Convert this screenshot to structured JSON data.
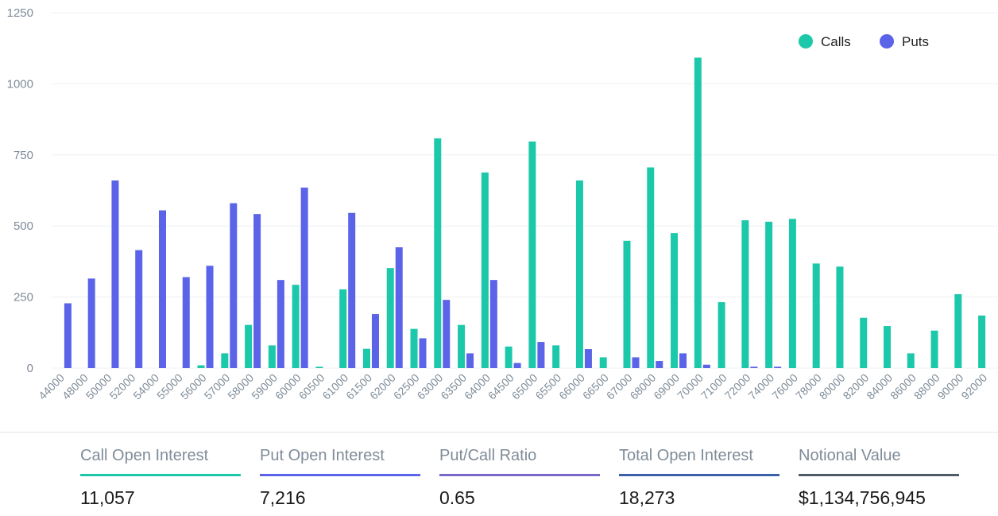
{
  "chart_data": {
    "type": "bar",
    "title": "",
    "xlabel": "",
    "ylabel": "",
    "ylim": [
      0,
      1250
    ],
    "yticks": [
      0,
      250,
      500,
      750,
      1000,
      1250
    ],
    "legend_position": "top-right",
    "categories": [
      "44000",
      "48000",
      "50000",
      "52000",
      "54000",
      "55000",
      "56000",
      "57000",
      "58000",
      "59000",
      "60000",
      "60500",
      "61000",
      "61500",
      "62000",
      "62500",
      "63000",
      "63500",
      "64000",
      "64500",
      "65000",
      "65500",
      "66000",
      "66500",
      "67000",
      "68000",
      "69000",
      "70000",
      "71000",
      "72000",
      "74000",
      "76000",
      "78000",
      "80000",
      "82000",
      "84000",
      "86000",
      "88000",
      "90000",
      "92000"
    ],
    "series": [
      {
        "name": "Calls",
        "color": "#1cc8aa",
        "values": [
          0,
          0,
          0,
          0,
          0,
          0,
          10,
          52,
          152,
          80,
          293,
          5,
          277,
          68,
          352,
          138,
          808,
          152,
          688,
          76,
          797,
          80,
          660,
          38,
          448,
          706,
          475,
          1092,
          232,
          520,
          515,
          525,
          368,
          357,
          177,
          148,
          52,
          132,
          260,
          185
        ]
      },
      {
        "name": "Puts",
        "color": "#5b63e8",
        "values": [
          228,
          315,
          660,
          415,
          555,
          320,
          360,
          580,
          542,
          310,
          635,
          0,
          546,
          190,
          425,
          105,
          240,
          52,
          310,
          18,
          92,
          0,
          67,
          0,
          38,
          25,
          52,
          12,
          0,
          5,
          5,
          0,
          0,
          0,
          0,
          0,
          0,
          0,
          0,
          0
        ]
      }
    ]
  },
  "stats": [
    {
      "label": "Call Open Interest",
      "value": "11,057",
      "color": "#1cc8aa"
    },
    {
      "label": "Put Open Interest",
      "value": "7,216",
      "color": "#5b63e8"
    },
    {
      "label": "Put/Call Ratio",
      "value": "0.65",
      "color": "#7b68c9"
    },
    {
      "label": "Total Open Interest",
      "value": "18,273",
      "color": "#3b5fa8"
    },
    {
      "label": "Notional Value",
      "value": "$1,134,756,945",
      "color": "#4f5b66"
    }
  ]
}
